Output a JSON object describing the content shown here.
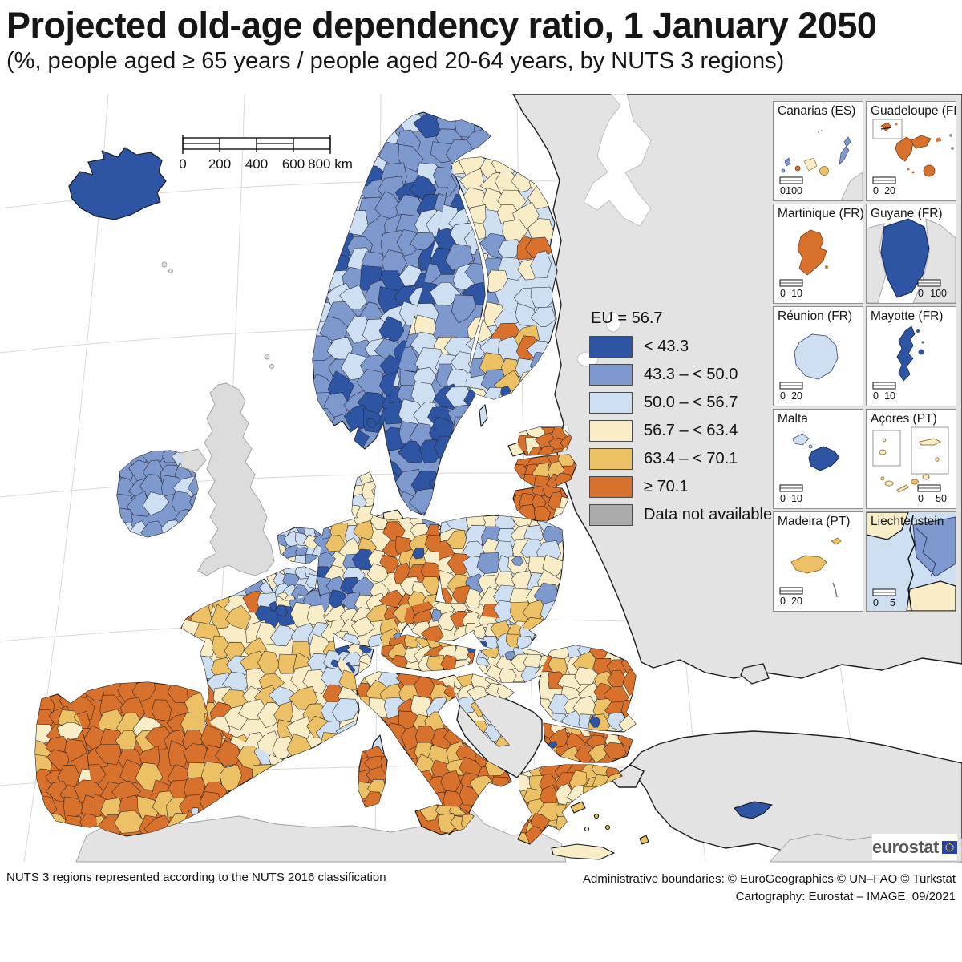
{
  "title": "Projected old-age dependency ratio, 1 January 2050",
  "subtitle": "(%, people aged ≥ 65 years / people aged 20-64 years, by NUTS 3 regions)",
  "scale_bar": {
    "t0": "0",
    "t1": "200",
    "t2": "400",
    "t3": "600",
    "t4": "800 km"
  },
  "legend": {
    "eu": "EU = 56.7",
    "items": [
      {
        "label": "< 43.3",
        "color": "#2e55a3"
      },
      {
        "label": "43.3 – < 50.0",
        "color": "#7e99ce"
      },
      {
        "label": "50.0 – < 56.7",
        "color": "#cedff2"
      },
      {
        "label": "56.7 – < 63.4",
        "color": "#f9edc8"
      },
      {
        "label": "63.4 – < 70.1",
        "color": "#ecc065"
      },
      {
        "label": "≥ 70.1",
        "color": "#d8712c"
      },
      {
        "label": "Data not available",
        "color": "#ababab"
      }
    ]
  },
  "insets": [
    {
      "name": "Canarias (ES)",
      "scale_from": "0",
      "scale_to": "100"
    },
    {
      "name": "Guadeloupe (FR)",
      "scale_from": "0",
      "scale_to": "20"
    },
    {
      "name": "Martinique (FR)",
      "scale_from": "0",
      "scale_to": "10"
    },
    {
      "name": "Guyane (FR)",
      "scale_from": "0",
      "scale_to": "100"
    },
    {
      "name": "Réunion (FR)",
      "scale_from": "0",
      "scale_to": "20"
    },
    {
      "name": "Mayotte (FR)",
      "scale_from": "0",
      "scale_to": "10"
    },
    {
      "name": "Malta",
      "scale_from": "0",
      "scale_to": "10"
    },
    {
      "name": "Açores (PT)",
      "scale_from": "0",
      "scale_to": "50"
    },
    {
      "name": "Madeira (PT)",
      "scale_from": "0",
      "scale_to": "20"
    },
    {
      "name": "Liechtenstein",
      "scale_from": "0",
      "scale_to": "5"
    }
  ],
  "footer": {
    "left": "NUTS 3 regions represented according to the NUTS 2016 classification",
    "right1": "Administrative boundaries: © EuroGeographics © UN–FAO © Turkstat",
    "right2": "Cartography: Eurostat – IMAGE, 09/2021"
  },
  "logo": {
    "text": "eurostat"
  },
  "colors": {
    "dark_blue": "#2e55a3",
    "medium_blue": "#7e99ce",
    "light_blue": "#cedff2",
    "cream": "#f9edc8",
    "amber": "#ecc065",
    "orange": "#d8712c",
    "no_data_gray": "#ababab",
    "non_eu_land": "#e3e3e3",
    "sea": "#ffffff"
  }
}
